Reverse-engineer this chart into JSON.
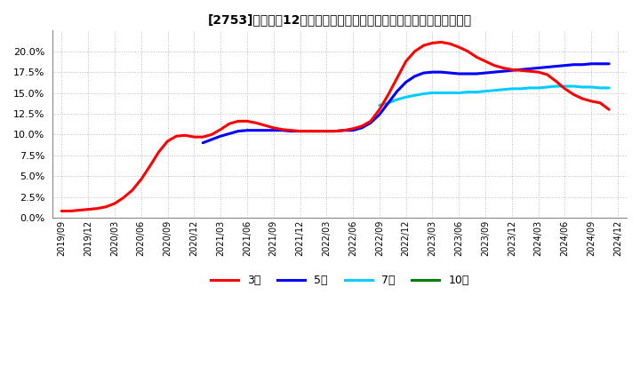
{
  "title": "[2753]　売上高12か月移動合計の対前年同期増減率の標準偏差の推移",
  "background_color": "#ffffff",
  "plot_bg_color": "#ffffff",
  "grid_color": "#bbbbbb",
  "ylim": [
    0.0,
    0.225
  ],
  "yticks": [
    0.0,
    0.025,
    0.05,
    0.075,
    0.1,
    0.125,
    0.15,
    0.175,
    0.2
  ],
  "xlim": [
    -1,
    64
  ],
  "series_3y": {
    "color": "#ff0000",
    "label": "3年",
    "x": [
      0,
      1,
      2,
      3,
      4,
      5,
      6,
      7,
      8,
      9,
      10,
      11,
      12,
      13,
      14,
      15,
      16,
      17,
      18,
      19,
      20,
      21,
      22,
      23,
      24,
      25,
      26,
      27,
      28,
      29,
      30,
      31,
      32,
      33,
      34,
      35,
      36,
      37,
      38,
      39,
      40,
      41,
      42,
      43,
      44,
      45,
      46,
      47,
      48,
      49,
      50,
      51,
      52,
      53,
      54,
      55,
      56,
      57,
      58,
      59,
      60,
      61,
      62
    ],
    "y": [
      0.008,
      0.008,
      0.009,
      0.01,
      0.011,
      0.013,
      0.017,
      0.024,
      0.033,
      0.046,
      0.062,
      0.079,
      0.092,
      0.098,
      0.099,
      0.097,
      0.097,
      0.1,
      0.106,
      0.113,
      0.116,
      0.116,
      0.114,
      0.111,
      0.108,
      0.106,
      0.105,
      0.104,
      0.104,
      0.104,
      0.104,
      0.104,
      0.105,
      0.107,
      0.11,
      0.116,
      0.13,
      0.148,
      0.168,
      0.188,
      0.2,
      0.207,
      0.21,
      0.211,
      0.209,
      0.205,
      0.2,
      0.193,
      0.188,
      0.183,
      0.18,
      0.178,
      0.177,
      0.176,
      0.175,
      0.172,
      0.164,
      0.155,
      0.148,
      0.143,
      0.14,
      0.138,
      0.13
    ]
  },
  "series_5y": {
    "color": "#0000ff",
    "label": "5年",
    "x": [
      16,
      17,
      18,
      19,
      20,
      21,
      22,
      23,
      24,
      25,
      26,
      27,
      28,
      29,
      30,
      31,
      32,
      33,
      34,
      35,
      36,
      37,
      38,
      39,
      40,
      41,
      42,
      43,
      44,
      45,
      46,
      47,
      48,
      49,
      50,
      51,
      52,
      53,
      54,
      55,
      56,
      57,
      58,
      59,
      60,
      61,
      62
    ],
    "y": [
      0.09,
      0.094,
      0.098,
      0.101,
      0.104,
      0.105,
      0.105,
      0.105,
      0.105,
      0.105,
      0.104,
      0.104,
      0.104,
      0.104,
      0.104,
      0.104,
      0.105,
      0.105,
      0.108,
      0.114,
      0.124,
      0.138,
      0.152,
      0.163,
      0.17,
      0.174,
      0.175,
      0.175,
      0.174,
      0.173,
      0.173,
      0.173,
      0.174,
      0.175,
      0.176,
      0.177,
      0.178,
      0.179,
      0.18,
      0.181,
      0.182,
      0.183,
      0.184,
      0.184,
      0.185,
      0.185,
      0.185
    ]
  },
  "series_7y": {
    "color": "#00ccff",
    "label": "7年",
    "x": [
      36,
      37,
      38,
      39,
      40,
      41,
      42,
      43,
      44,
      45,
      46,
      47,
      48,
      49,
      50,
      51,
      52,
      53,
      54,
      55,
      56,
      57,
      58,
      59,
      60,
      61,
      62
    ],
    "y": [
      0.135,
      0.138,
      0.142,
      0.145,
      0.147,
      0.149,
      0.15,
      0.15,
      0.15,
      0.15,
      0.151,
      0.151,
      0.152,
      0.153,
      0.154,
      0.155,
      0.155,
      0.156,
      0.156,
      0.157,
      0.158,
      0.158,
      0.158,
      0.157,
      0.157,
      0.156,
      0.156
    ]
  },
  "series_10y": {
    "color": "#008000",
    "label": "10年",
    "x": [],
    "y": []
  },
  "x_tick_positions": [
    0,
    3,
    6,
    9,
    12,
    15,
    18,
    21,
    24,
    27,
    30,
    33,
    36,
    39,
    42,
    45,
    48,
    51,
    54,
    57,
    60,
    63
  ],
  "x_tick_labels": [
    "2019/09",
    "2019/12",
    "2020/03",
    "2020/06",
    "2020/09",
    "2020/12",
    "2021/03",
    "2021/06",
    "2021/09",
    "2021/12",
    "2022/03",
    "2022/06",
    "2022/09",
    "2022/12",
    "2023/03",
    "2023/06",
    "2023/09",
    "2023/12",
    "2024/03",
    "2024/06",
    "2024/09",
    "2024/12"
  ],
  "legend_labels": [
    "3年",
    "5年",
    "7年",
    "10年"
  ],
  "legend_colors": [
    "#ff0000",
    "#0000ff",
    "#00ccff",
    "#008000"
  ]
}
